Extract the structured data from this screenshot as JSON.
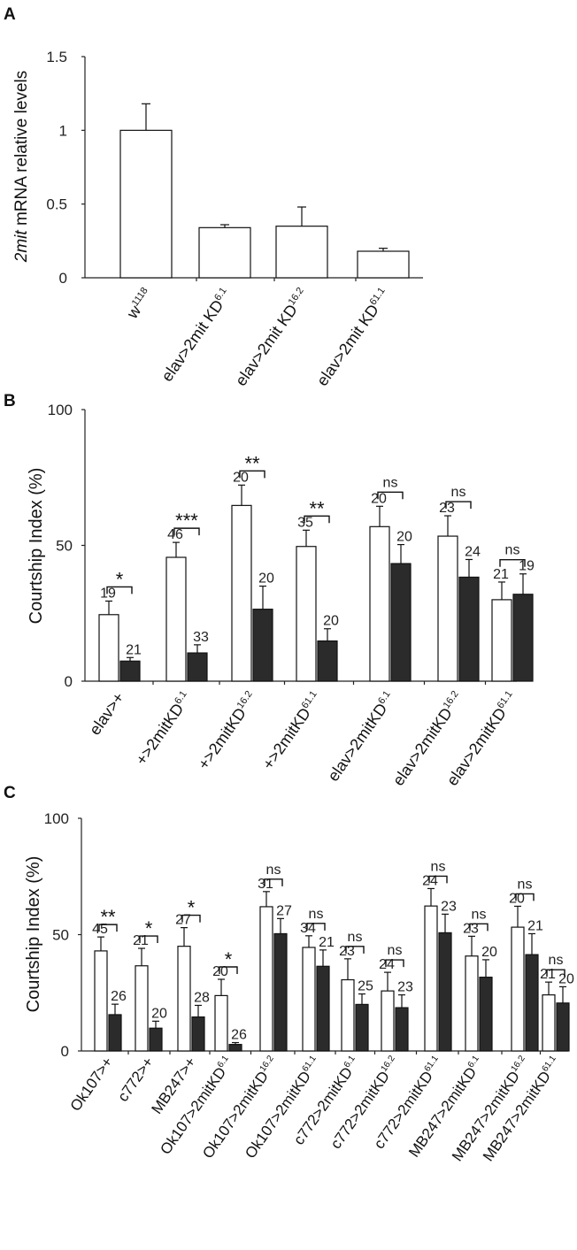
{
  "chart_data": [
    {
      "panel": "A",
      "type": "bar",
      "ylabel_italic": "2mit",
      "ylabel_rest": " mRNA relative levels",
      "ylim": [
        0,
        1.5
      ],
      "yticks": [
        "0",
        "0.5",
        "1",
        "1.5"
      ],
      "categories": [
        {
          "base": "w",
          "sup": "1118"
        },
        {
          "base": "elav>2mit KD",
          "sup": "6.1"
        },
        {
          "base": "elav>2mit KD",
          "sup": "16.2"
        },
        {
          "base": "elav>2mit KD",
          "sup": "61.1"
        }
      ],
      "values": [
        1.0,
        0.34,
        0.35,
        0.18
      ],
      "errors": [
        0.18,
        0.02,
        0.13,
        0.02
      ]
    },
    {
      "panel": "B",
      "type": "bar",
      "ylabel": "Courtship  Index (%)",
      "ylim": [
        0,
        100
      ],
      "yticks": [
        "0",
        "50",
        "100"
      ],
      "categories": [
        {
          "base": "elav>+",
          "sup": ""
        },
        {
          "base": "+>2mitKD",
          "sup": "6.1"
        },
        {
          "base": "+>2mitKD",
          "sup": "16.2"
        },
        {
          "base": "+>2mitKD",
          "sup": "61.1"
        },
        {
          "base": "elav>2mitKD",
          "sup": "6.1"
        },
        {
          "base": "elav>2mitKD",
          "sup": "16.2"
        },
        {
          "base": "elav>2mitKD",
          "sup": "61.1"
        }
      ],
      "series": [
        {
          "name": "open",
          "values": [
            24.5,
            45.6,
            64.7,
            49.6,
            56.9,
            53.4,
            30.0
          ],
          "errors": [
            5,
            5.5,
            7.5,
            6,
            7.5,
            7.5,
            6.5
          ],
          "n": [
            "19",
            "46",
            "20",
            "35",
            "20",
            "23",
            "21"
          ]
        },
        {
          "name": "filled",
          "values": [
            7.4,
            10.4,
            26.5,
            14.8,
            43.3,
            38.3,
            32.0
          ],
          "errors": [
            1.3,
            3,
            8.5,
            4.5,
            7,
            6.5,
            7.5
          ],
          "n": [
            "21",
            "33",
            "20",
            "20",
            "20",
            "24",
            "19"
          ]
        }
      ],
      "significance": [
        "*",
        "***",
        "**",
        "**",
        "ns",
        "ns",
        "ns"
      ]
    },
    {
      "panel": "C",
      "type": "bar",
      "ylabel": "Courtship  Index (%)",
      "ylim": [
        0,
        100
      ],
      "yticks": [
        "0",
        "50",
        "100"
      ],
      "categories": [
        {
          "base": "Ok107>+",
          "sup": ""
        },
        {
          "base": "c772>+",
          "sup": ""
        },
        {
          "base": "MB247>+",
          "sup": ""
        },
        {
          "base": "Ok107>2mitKD",
          "sup": "6.1"
        },
        {
          "base": "Ok107>2mitKD",
          "sup": "16.2"
        },
        {
          "base": "Ok107>2mitKD",
          "sup": "61.1"
        },
        {
          "base": "c772>2mitKD",
          "sup": "6.1"
        },
        {
          "base": "c772>2mitKD",
          "sup": "16.2"
        },
        {
          "base": "c772>2mitKD",
          "sup": "61.1"
        },
        {
          "base": "MB247>2mitKD",
          "sup": "6.1"
        },
        {
          "base": "MB247>2mitKD",
          "sup": "16.2"
        },
        {
          "base": "MB247>2mitKD",
          "sup": "61.1"
        }
      ],
      "series": [
        {
          "name": "open",
          "values": [
            43,
            36.6,
            45,
            23.8,
            62,
            44.5,
            30.6,
            25.8,
            62.3,
            40.8,
            53.2,
            24.1
          ],
          "errors": [
            6,
            7.5,
            8,
            7,
            6.5,
            5,
            9,
            8,
            7.5,
            8.5,
            9,
            5.5
          ],
          "n": [
            "45",
            "21",
            "27",
            "20",
            "31",
            "34",
            "23",
            "24",
            "24",
            "23",
            "20",
            "21"
          ]
        },
        {
          "name": "filled",
          "values": [
            15.6,
            9.8,
            14.6,
            2.8,
            50.4,
            36.4,
            20,
            18.6,
            50.8,
            31.7,
            41.4,
            20.6
          ],
          "errors": [
            4.5,
            3,
            5,
            0.8,
            6.5,
            7,
            4.5,
            5.5,
            8,
            7.5,
            9,
            7
          ],
          "n": [
            "26",
            "20",
            "28",
            "26",
            "27",
            "21",
            "25",
            "23",
            "23",
            "20",
            "21",
            "20"
          ]
        }
      ],
      "significance": [
        "**",
        "*",
        "*",
        "*",
        "ns",
        "ns",
        "ns",
        "ns",
        "ns",
        "ns",
        "ns",
        "ns"
      ]
    }
  ],
  "labels": {
    "a": "A",
    "b": "B",
    "c": "C"
  }
}
